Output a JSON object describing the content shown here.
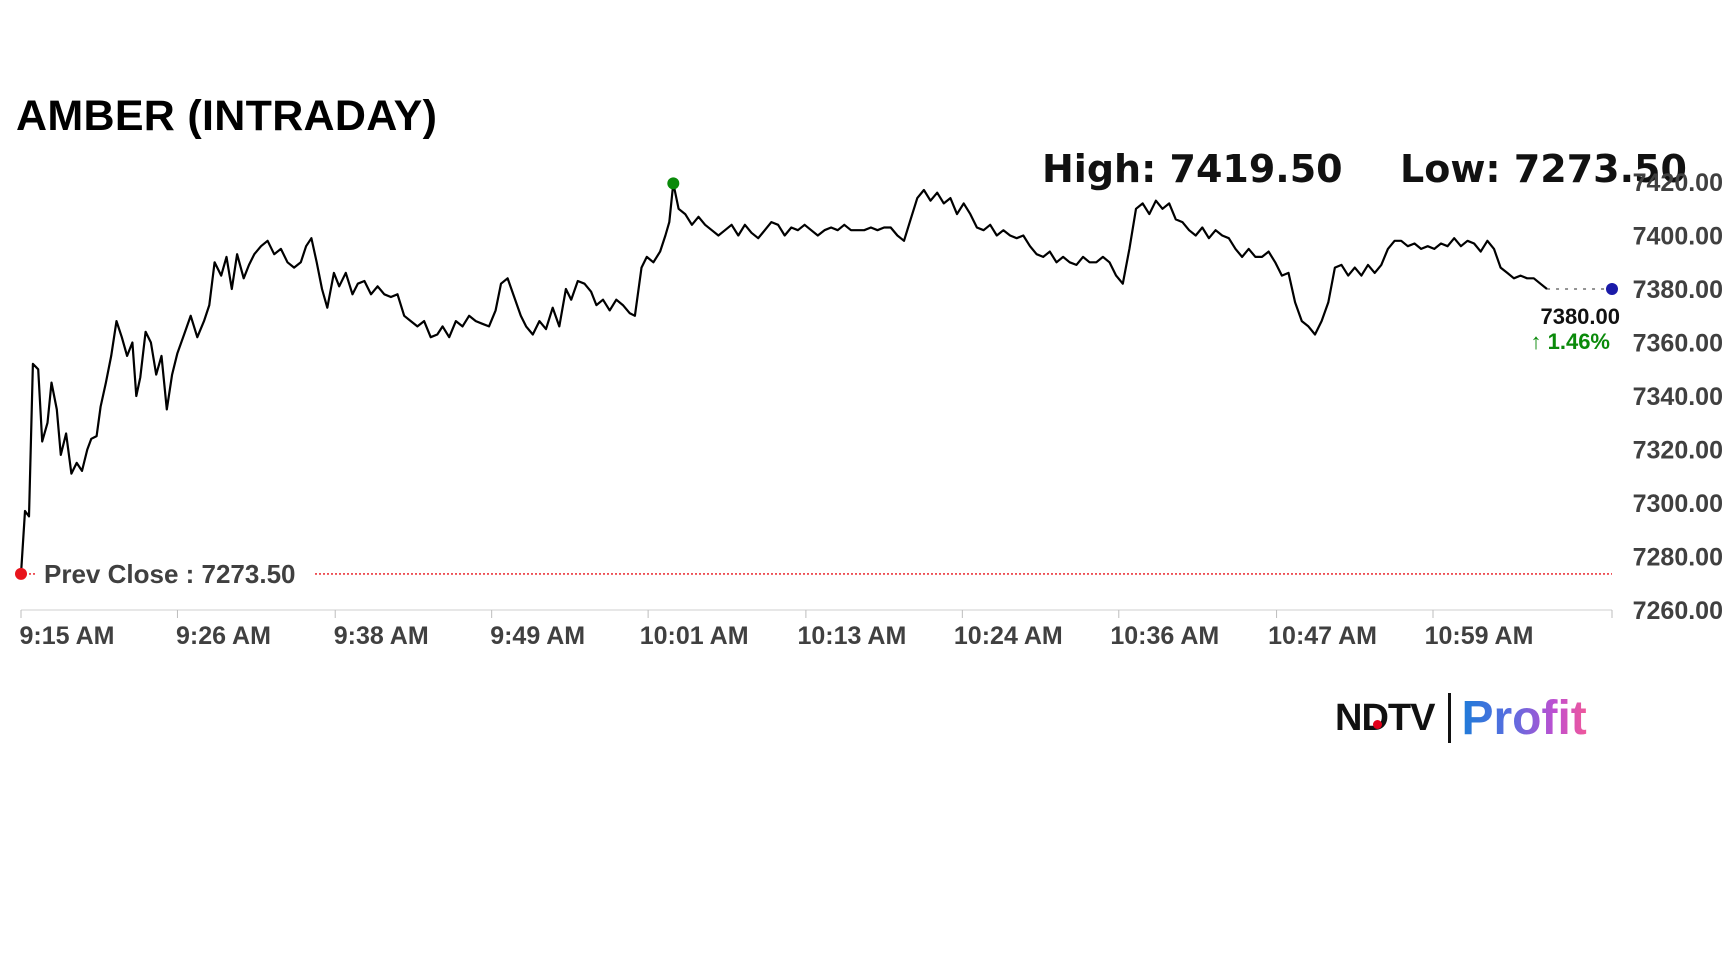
{
  "header": {
    "title": "AMBER (INTRADAY)",
    "high_label": "High: 7419.50",
    "low_label": "Low: 7273.50"
  },
  "brand": {
    "ndtv": "NDTV",
    "profit": "Profit"
  },
  "colors": {
    "line": "#000000",
    "prev_close": "#e8141c",
    "high_marker": "#0a8a0a",
    "last_marker": "#1a1aa8",
    "change_positive": "#0a8a0a",
    "axis_text": "#404040"
  },
  "chart_data": {
    "type": "line",
    "title": "AMBER (INTRADAY)",
    "x_tick_labels": [
      "9:15 AM",
      "9:26 AM",
      "9:38 AM",
      "9:49 AM",
      "10:01 AM",
      "10:13 AM",
      "10:24 AM",
      "10:36 AM",
      "10:47 AM",
      "10:59 AM"
    ],
    "y_tick_labels": [
      "7420.00",
      "7400.00",
      "7380.00",
      "7360.00",
      "7340.00",
      "7320.00",
      "7300.00",
      "7280.00",
      "7260.00"
    ],
    "ylim": [
      7260,
      7420
    ],
    "y_ticks": [
      7420,
      7400,
      7380,
      7360,
      7340,
      7320,
      7300,
      7280,
      7260
    ],
    "x_minutes_range": [
      0,
      120
    ],
    "x_tick_minutes": [
      0,
      11.8,
      23.7,
      35.5,
      47.3,
      59.2,
      71,
      82.8,
      94.7,
      106.5
    ],
    "prev_close": 7273.5,
    "prev_close_label": "Prev Close : 7273.50",
    "high": 7419.5,
    "low": 7273.5,
    "last_price_label": "7380.00",
    "change_label": "↑ 1.46%",
    "last_price": 7380.0,
    "series": [
      {
        "points": [
          [
            0,
            7273.5
          ],
          [
            0.3,
            7297
          ],
          [
            0.6,
            7295
          ],
          [
            0.9,
            7352
          ],
          [
            1.3,
            7350
          ],
          [
            1.6,
            7323
          ],
          [
            2.0,
            7330
          ],
          [
            2.3,
            7345
          ],
          [
            2.7,
            7335
          ],
          [
            3.0,
            7318
          ],
          [
            3.4,
            7326
          ],
          [
            3.8,
            7311
          ],
          [
            4.2,
            7315
          ],
          [
            4.6,
            7312
          ],
          [
            5.0,
            7320
          ],
          [
            5.3,
            7324
          ],
          [
            5.7,
            7325
          ],
          [
            6.0,
            7336
          ],
          [
            6.4,
            7345
          ],
          [
            6.8,
            7355
          ],
          [
            7.2,
            7368
          ],
          [
            7.6,
            7362
          ],
          [
            8.0,
            7355
          ],
          [
            8.4,
            7360
          ],
          [
            8.7,
            7340
          ],
          [
            9.0,
            7347
          ],
          [
            9.4,
            7364
          ],
          [
            9.8,
            7360
          ],
          [
            10.2,
            7348
          ],
          [
            10.6,
            7355
          ],
          [
            11.0,
            7335
          ],
          [
            11.4,
            7348
          ],
          [
            11.8,
            7356
          ],
          [
            12.3,
            7363
          ],
          [
            12.8,
            7370
          ],
          [
            13.3,
            7362
          ],
          [
            13.8,
            7368
          ],
          [
            14.2,
            7374
          ],
          [
            14.6,
            7390
          ],
          [
            15.1,
            7385
          ],
          [
            15.5,
            7392
          ],
          [
            15.9,
            7380
          ],
          [
            16.3,
            7393
          ],
          [
            16.8,
            7384
          ],
          [
            17.2,
            7389
          ],
          [
            17.6,
            7393
          ],
          [
            18.1,
            7396
          ],
          [
            18.6,
            7398
          ],
          [
            19.1,
            7393
          ],
          [
            19.6,
            7395
          ],
          [
            20.1,
            7390
          ],
          [
            20.6,
            7388
          ],
          [
            21.1,
            7390
          ],
          [
            21.5,
            7396
          ],
          [
            21.9,
            7399
          ],
          [
            22.3,
            7390
          ],
          [
            22.7,
            7380
          ],
          [
            23.1,
            7373
          ],
          [
            23.6,
            7386
          ],
          [
            24.0,
            7381
          ],
          [
            24.5,
            7386
          ],
          [
            25.0,
            7378
          ],
          [
            25.4,
            7382
          ],
          [
            25.9,
            7383
          ],
          [
            26.4,
            7378
          ],
          [
            26.9,
            7381
          ],
          [
            27.4,
            7378
          ],
          [
            27.9,
            7377
          ],
          [
            28.4,
            7378
          ],
          [
            28.9,
            7370
          ],
          [
            29.4,
            7368
          ],
          [
            29.9,
            7366
          ],
          [
            30.4,
            7368
          ],
          [
            30.9,
            7362
          ],
          [
            31.4,
            7363
          ],
          [
            31.8,
            7366
          ],
          [
            32.3,
            7362
          ],
          [
            32.8,
            7368
          ],
          [
            33.3,
            7366
          ],
          [
            33.8,
            7370
          ],
          [
            34.3,
            7368
          ],
          [
            34.8,
            7367
          ],
          [
            35.3,
            7366
          ],
          [
            35.8,
            7372
          ],
          [
            36.2,
            7382
          ],
          [
            36.7,
            7384
          ],
          [
            37.2,
            7377
          ],
          [
            37.7,
            7370
          ],
          [
            38.1,
            7366
          ],
          [
            38.6,
            7363
          ],
          [
            39.1,
            7368
          ],
          [
            39.6,
            7365
          ],
          [
            40.1,
            7373
          ],
          [
            40.6,
            7366
          ],
          [
            41.1,
            7380
          ],
          [
            41.5,
            7376
          ],
          [
            42.0,
            7383
          ],
          [
            42.5,
            7382
          ],
          [
            43.0,
            7379
          ],
          [
            43.4,
            7374
          ],
          [
            43.9,
            7376
          ],
          [
            44.4,
            7372
          ],
          [
            44.9,
            7376
          ],
          [
            45.4,
            7374
          ],
          [
            45.9,
            7371
          ],
          [
            46.3,
            7370
          ],
          [
            46.8,
            7388
          ],
          [
            47.2,
            7392
          ],
          [
            47.7,
            7390
          ],
          [
            48.2,
            7394
          ],
          [
            48.6,
            7400
          ],
          [
            48.9,
            7405
          ],
          [
            49.2,
            7419.5
          ],
          [
            49.6,
            7410
          ],
          [
            50.1,
            7408
          ],
          [
            50.6,
            7404
          ],
          [
            51.1,
            7407
          ],
          [
            51.6,
            7404
          ],
          [
            52.1,
            7402
          ],
          [
            52.6,
            7400
          ],
          [
            53.1,
            7402
          ],
          [
            53.6,
            7404
          ],
          [
            54.1,
            7400
          ],
          [
            54.6,
            7404
          ],
          [
            55.1,
            7401
          ],
          [
            55.6,
            7399
          ],
          [
            56.1,
            7402
          ],
          [
            56.6,
            7405
          ],
          [
            57.1,
            7404
          ],
          [
            57.6,
            7400
          ],
          [
            58.1,
            7403
          ],
          [
            58.6,
            7402
          ],
          [
            59.1,
            7404
          ],
          [
            59.6,
            7402
          ],
          [
            60.1,
            7400
          ],
          [
            60.6,
            7402
          ],
          [
            61.1,
            7403
          ],
          [
            61.6,
            7402
          ],
          [
            62.1,
            7404
          ],
          [
            62.6,
            7402
          ],
          [
            63.1,
            7402
          ],
          [
            63.6,
            7402
          ],
          [
            64.1,
            7403
          ],
          [
            64.6,
            7402
          ],
          [
            65.1,
            7403
          ],
          [
            65.6,
            7403
          ],
          [
            66.1,
            7400
          ],
          [
            66.6,
            7398
          ],
          [
            67.1,
            7406
          ],
          [
            67.6,
            7414
          ],
          [
            68.1,
            7417
          ],
          [
            68.6,
            7413
          ],
          [
            69.1,
            7416
          ],
          [
            69.6,
            7412
          ],
          [
            70.1,
            7414
          ],
          [
            70.6,
            7408
          ],
          [
            71.1,
            7412
          ],
          [
            71.6,
            7408
          ],
          [
            72.1,
            7403
          ],
          [
            72.6,
            7402
          ],
          [
            73.1,
            7404
          ],
          [
            73.6,
            7400
          ],
          [
            74.1,
            7402
          ],
          [
            74.6,
            7400
          ],
          [
            75.1,
            7399
          ],
          [
            75.6,
            7400
          ],
          [
            76.1,
            7396
          ],
          [
            76.6,
            7393
          ],
          [
            77.1,
            7392
          ],
          [
            77.6,
            7394
          ],
          [
            78.1,
            7390
          ],
          [
            78.6,
            7392
          ],
          [
            79.1,
            7390
          ],
          [
            79.6,
            7389
          ],
          [
            80.1,
            7392
          ],
          [
            80.6,
            7390
          ],
          [
            81.1,
            7390
          ],
          [
            81.6,
            7392
          ],
          [
            82.1,
            7390
          ],
          [
            82.6,
            7385
          ],
          [
            83.1,
            7382
          ],
          [
            83.6,
            7395
          ],
          [
            84.1,
            7410
          ],
          [
            84.6,
            7412
          ],
          [
            85.1,
            7408
          ],
          [
            85.6,
            7413
          ],
          [
            86.1,
            7410
          ],
          [
            86.6,
            7412
          ],
          [
            87.1,
            7406
          ],
          [
            87.6,
            7405
          ],
          [
            88.1,
            7402
          ],
          [
            88.6,
            7400
          ],
          [
            89.1,
            7403
          ],
          [
            89.6,
            7399
          ],
          [
            90.1,
            7402
          ],
          [
            90.6,
            7400
          ],
          [
            91.1,
            7399
          ],
          [
            91.6,
            7395
          ],
          [
            92.1,
            7392
          ],
          [
            92.6,
            7395
          ],
          [
            93.1,
            7392
          ],
          [
            93.6,
            7392
          ],
          [
            94.1,
            7394
          ],
          [
            94.6,
            7390
          ],
          [
            95.1,
            7385
          ],
          [
            95.6,
            7386
          ],
          [
            96.1,
            7375
          ],
          [
            96.6,
            7368
          ],
          [
            97.1,
            7366
          ],
          [
            97.6,
            7363
          ],
          [
            98.1,
            7368
          ],
          [
            98.6,
            7375
          ],
          [
            99.1,
            7388
          ],
          [
            99.6,
            7389
          ],
          [
            100.1,
            7385
          ],
          [
            100.6,
            7388
          ],
          [
            101.1,
            7385
          ],
          [
            101.6,
            7389
          ],
          [
            102.1,
            7386
          ],
          [
            102.6,
            7389
          ],
          [
            103.1,
            7395
          ],
          [
            103.6,
            7398
          ],
          [
            104.1,
            7398
          ],
          [
            104.6,
            7396
          ],
          [
            105.1,
            7397
          ],
          [
            105.6,
            7395
          ],
          [
            106.1,
            7396
          ],
          [
            106.6,
            7395
          ],
          [
            107.1,
            7397
          ],
          [
            107.6,
            7396
          ],
          [
            108.1,
            7399
          ],
          [
            108.6,
            7396
          ],
          [
            109.1,
            7398
          ],
          [
            109.6,
            7397
          ],
          [
            110.1,
            7394
          ],
          [
            110.6,
            7398
          ],
          [
            111.1,
            7395
          ],
          [
            111.6,
            7388
          ],
          [
            112.1,
            7386
          ],
          [
            112.6,
            7384
          ],
          [
            113.1,
            7385
          ],
          [
            113.6,
            7384
          ],
          [
            114.1,
            7384
          ],
          [
            114.6,
            7382
          ],
          [
            115.1,
            7380
          ]
        ]
      }
    ],
    "grid": false
  }
}
